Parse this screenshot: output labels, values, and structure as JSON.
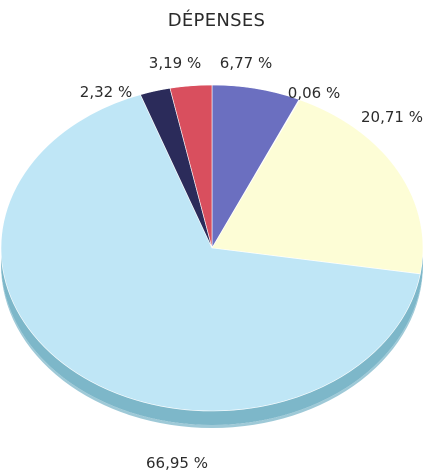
{
  "chart_data": {
    "type": "pie",
    "title": "DÉPENSES",
    "slices": [
      {
        "value": 6.77,
        "label": "6,77 %",
        "color": "#6b6fc0"
      },
      {
        "value": 0.06,
        "label": "0,06 %",
        "color": "#d8d8e0"
      },
      {
        "value": 20.71,
        "label": "20,71 %",
        "color": "#fdfdd6"
      },
      {
        "value": 66.95,
        "label": "66,95 %",
        "color": "#bfe6f6"
      },
      {
        "value": 2.32,
        "label": "2,32 %",
        "color": "#2b2b5a"
      },
      {
        "value": 3.19,
        "label": "3,19 %",
        "color": "#d94f5e"
      }
    ],
    "start_at": "12 o'clock",
    "direction": "clockwise",
    "legend": "none",
    "style": "3d-tilted"
  }
}
